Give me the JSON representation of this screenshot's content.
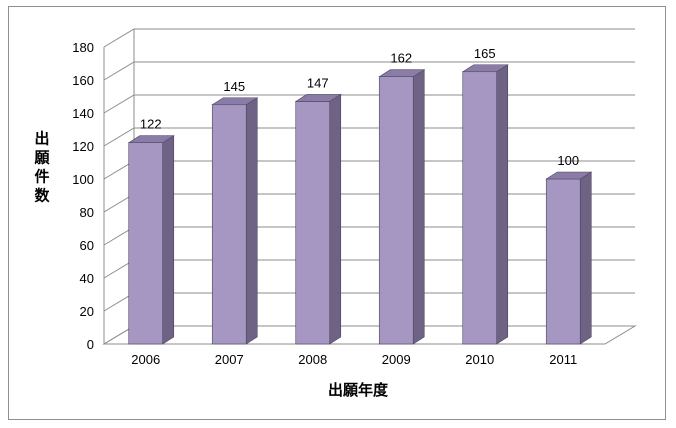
{
  "chart_data": {
    "type": "bar",
    "categories": [
      "2006",
      "2007",
      "2008",
      "2009",
      "2010",
      "2011"
    ],
    "values": [
      122,
      145,
      147,
      162,
      165,
      100
    ],
    "xlabel": "出願年度",
    "ylabel": "出願件数",
    "ylim": [
      0,
      180
    ],
    "yticks": [
      0,
      20,
      40,
      60,
      80,
      100,
      120,
      140,
      160,
      180
    ],
    "grid": true,
    "legend": "none",
    "style": "3d-column",
    "colors": {
      "bar_front": "#a597c2",
      "bar_side": "#6e6385",
      "bar_top": "#8a7ca6",
      "grid": "#8c8c8c",
      "wall": "#c8c8c8"
    }
  }
}
